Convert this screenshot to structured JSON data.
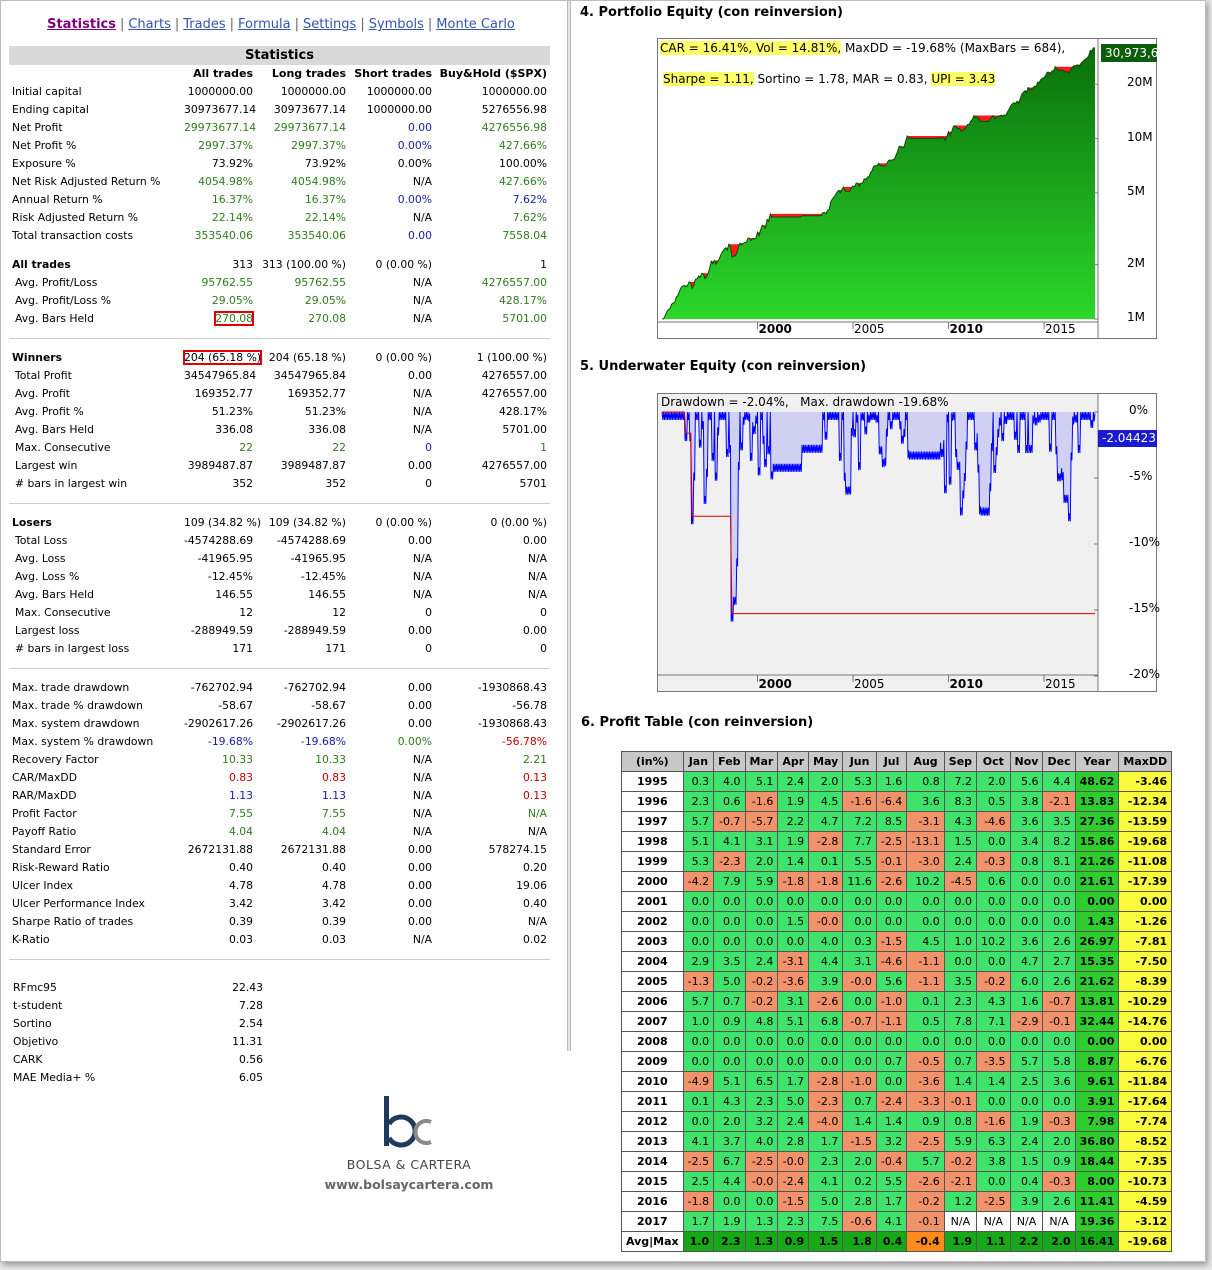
{
  "nav": {
    "items": [
      "Statistics",
      "Charts",
      "Trades",
      "Formula",
      "Settings",
      "Symbols",
      "Monte Carlo"
    ],
    "active": "Statistics"
  },
  "stats": {
    "title": "Statistics",
    "columns": [
      "",
      "All trades",
      "Long trades",
      "Short trades",
      "Buy&Hold ($SPX)"
    ],
    "rows": [
      {
        "label": "Initial capital",
        "v": [
          "1000000.00",
          "1000000.00",
          "1000000.00",
          "1000000.00"
        ],
        "c": [
          "k",
          "k",
          "k",
          "k"
        ]
      },
      {
        "label": "Ending capital",
        "v": [
          "30973677.14",
          "30973677.14",
          "1000000.00",
          "5276556.98"
        ],
        "c": [
          "k",
          "k",
          "k",
          "k"
        ]
      },
      {
        "label": "Net Profit",
        "v": [
          "29973677.14",
          "29973677.14",
          "0.00",
          "4276556.98"
        ],
        "c": [
          "g",
          "g",
          "b",
          "g"
        ]
      },
      {
        "label": "Net Profit %",
        "v": [
          "2997.37%",
          "2997.37%",
          "0.00%",
          "427.66%"
        ],
        "c": [
          "g",
          "g",
          "b",
          "g"
        ]
      },
      {
        "label": "Exposure %",
        "v": [
          "73.92%",
          "73.92%",
          "0.00%",
          "100.00%"
        ],
        "c": [
          "k",
          "k",
          "k",
          "k"
        ]
      },
      {
        "label": "Net Risk Adjusted Return %",
        "v": [
          "4054.98%",
          "4054.98%",
          "N/A",
          "427.66%"
        ],
        "c": [
          "g",
          "g",
          "k",
          "g"
        ]
      },
      {
        "label": "Annual Return %",
        "v": [
          "16.37%",
          "16.37%",
          "0.00%",
          "7.62%"
        ],
        "c": [
          "g",
          "g",
          "b",
          "b"
        ]
      },
      {
        "label": "Risk Adjusted Return %",
        "v": [
          "22.14%",
          "22.14%",
          "N/A",
          "7.62%"
        ],
        "c": [
          "g",
          "g",
          "k",
          "g"
        ]
      },
      {
        "label": "Total transaction costs",
        "v": [
          "353540.06",
          "353540.06",
          "0.00",
          "7558.04"
        ],
        "c": [
          "g",
          "g",
          "b",
          "g"
        ]
      },
      {
        "sep": "blank"
      },
      {
        "label": "All trades",
        "sec": true,
        "v": [
          "313",
          "313 (100.00 %)",
          "0 (0.00 %)",
          "1"
        ],
        "c": [
          "k",
          "k",
          "k",
          "k"
        ]
      },
      {
        "label": "Avg. Profit/Loss",
        "ind": true,
        "v": [
          "95762.55",
          "95762.55",
          "N/A",
          "4276557.00"
        ],
        "c": [
          "g",
          "g",
          "k",
          "g"
        ]
      },
      {
        "label": "Avg. Profit/Loss %",
        "ind": true,
        "v": [
          "29.05%",
          "29.05%",
          "N/A",
          "428.17%"
        ],
        "c": [
          "g",
          "g",
          "k",
          "g"
        ]
      },
      {
        "label": "Avg. Bars Held",
        "ind": true,
        "v": [
          "270.08",
          "270.08",
          "N/A",
          "5701.00"
        ],
        "c": [
          "g",
          "g",
          "k",
          "g"
        ],
        "box": 0
      },
      {
        "sep": "line"
      },
      {
        "label": "Winners",
        "sec": true,
        "v": [
          "204 (65.18 %)",
          "204 (65.18 %)",
          "0 (0.00 %)",
          "1 (100.00 %)"
        ],
        "c": [
          "k",
          "k",
          "k",
          "k"
        ],
        "box": 0
      },
      {
        "label": "Total Profit",
        "ind": true,
        "v": [
          "34547965.84",
          "34547965.84",
          "0.00",
          "4276557.00"
        ],
        "c": [
          "k",
          "k",
          "k",
          "k"
        ]
      },
      {
        "label": "Avg. Profit",
        "ind": true,
        "v": [
          "169352.77",
          "169352.77",
          "N/A",
          "4276557.00"
        ],
        "c": [
          "k",
          "k",
          "k",
          "k"
        ]
      },
      {
        "label": "Avg. Profit %",
        "ind": true,
        "v": [
          "51.23%",
          "51.23%",
          "N/A",
          "428.17%"
        ],
        "c": [
          "k",
          "k",
          "k",
          "k"
        ]
      },
      {
        "label": "Avg. Bars Held",
        "ind": true,
        "v": [
          "336.08",
          "336.08",
          "N/A",
          "5701.00"
        ],
        "c": [
          "k",
          "k",
          "k",
          "k"
        ]
      },
      {
        "label": "Max. Consecutive",
        "ind": true,
        "v": [
          "22",
          "22",
          "0",
          "1"
        ],
        "c": [
          "g",
          "g",
          "b",
          "g"
        ]
      },
      {
        "label": "Largest win",
        "ind": true,
        "v": [
          "3989487.87",
          "3989487.87",
          "0.00",
          "4276557.00"
        ],
        "c": [
          "k",
          "k",
          "k",
          "k"
        ]
      },
      {
        "label": "# bars in largest win",
        "ind": true,
        "v": [
          "352",
          "352",
          "0",
          "5701"
        ],
        "c": [
          "k",
          "k",
          "k",
          "k"
        ]
      },
      {
        "sep": "line"
      },
      {
        "label": "Losers",
        "sec": true,
        "v": [
          "109 (34.82 %)",
          "109 (34.82 %)",
          "0 (0.00 %)",
          "0 (0.00 %)"
        ],
        "c": [
          "k",
          "k",
          "k",
          "k"
        ]
      },
      {
        "label": "Total Loss",
        "ind": true,
        "v": [
          "-4574288.69",
          "-4574288.69",
          "0.00",
          "0.00"
        ],
        "c": [
          "k",
          "k",
          "k",
          "k"
        ]
      },
      {
        "label": "Avg. Loss",
        "ind": true,
        "v": [
          "-41965.95",
          "-41965.95",
          "N/A",
          "N/A"
        ],
        "c": [
          "k",
          "k",
          "k",
          "k"
        ]
      },
      {
        "label": "Avg. Loss %",
        "ind": true,
        "v": [
          "-12.45%",
          "-12.45%",
          "N/A",
          "N/A"
        ],
        "c": [
          "k",
          "k",
          "k",
          "k"
        ]
      },
      {
        "label": "Avg. Bars Held",
        "ind": true,
        "v": [
          "146.55",
          "146.55",
          "N/A",
          "N/A"
        ],
        "c": [
          "k",
          "k",
          "k",
          "k"
        ]
      },
      {
        "label": "Max. Consecutive",
        "ind": true,
        "v": [
          "12",
          "12",
          "0",
          "0"
        ],
        "c": [
          "k",
          "k",
          "k",
          "k"
        ]
      },
      {
        "label": "Largest loss",
        "ind": true,
        "v": [
          "-288949.59",
          "-288949.59",
          "0.00",
          "0.00"
        ],
        "c": [
          "k",
          "k",
          "k",
          "k"
        ]
      },
      {
        "label": "# bars in largest loss",
        "ind": true,
        "v": [
          "171",
          "171",
          "0",
          "0"
        ],
        "c": [
          "k",
          "k",
          "k",
          "k"
        ]
      },
      {
        "sep": "line"
      },
      {
        "label": "Max. trade drawdown",
        "v": [
          "-762702.94",
          "-762702.94",
          "0.00",
          "-1930868.43"
        ],
        "c": [
          "k",
          "k",
          "k",
          "k"
        ]
      },
      {
        "label": "Max. trade % drawdown",
        "v": [
          "-58.67",
          "-58.67",
          "0.00",
          "-56.78"
        ],
        "c": [
          "k",
          "k",
          "k",
          "k"
        ]
      },
      {
        "label": "Max. system drawdown",
        "v": [
          "-2902617.26",
          "-2902617.26",
          "0.00",
          "-1930868.43"
        ],
        "c": [
          "k",
          "k",
          "k",
          "k"
        ]
      },
      {
        "label": "Max. system % drawdown",
        "v": [
          "-19.68%",
          "-19.68%",
          "0.00%",
          "-56.78%"
        ],
        "c": [
          "b",
          "b",
          "g",
          "r"
        ]
      },
      {
        "label": "Recovery Factor",
        "v": [
          "10.33",
          "10.33",
          "N/A",
          "2.21"
        ],
        "c": [
          "g",
          "g",
          "k",
          "g"
        ]
      },
      {
        "label": "CAR/MaxDD",
        "v": [
          "0.83",
          "0.83",
          "N/A",
          "0.13"
        ],
        "c": [
          "r",
          "r",
          "k",
          "r"
        ]
      },
      {
        "label": "RAR/MaxDD",
        "v": [
          "1.13",
          "1.13",
          "N/A",
          "0.13"
        ],
        "c": [
          "b",
          "b",
          "k",
          "r"
        ]
      },
      {
        "label": "Profit Factor",
        "v": [
          "7.55",
          "7.55",
          "N/A",
          "N/A"
        ],
        "c": [
          "g",
          "g",
          "k",
          "g"
        ]
      },
      {
        "label": "Payoff Ratio",
        "v": [
          "4.04",
          "4.04",
          "N/A",
          "N/A"
        ],
        "c": [
          "g",
          "g",
          "k",
          "k"
        ]
      },
      {
        "label": "Standard Error",
        "v": [
          "2672131.88",
          "2672131.88",
          "0.00",
          "578274.15"
        ],
        "c": [
          "k",
          "k",
          "k",
          "k"
        ]
      },
      {
        "label": "Risk-Reward Ratio",
        "v": [
          "0.40",
          "0.40",
          "0.00",
          "0.20"
        ],
        "c": [
          "k",
          "k",
          "k",
          "k"
        ]
      },
      {
        "label": "Ulcer Index",
        "v": [
          "4.78",
          "4.78",
          "0.00",
          "19.06"
        ],
        "c": [
          "k",
          "k",
          "k",
          "k"
        ]
      },
      {
        "label": "Ulcer Performance Index",
        "v": [
          "3.42",
          "3.42",
          "0.00",
          "0.40"
        ],
        "c": [
          "k",
          "k",
          "k",
          "k"
        ]
      },
      {
        "label": "Sharpe Ratio of trades",
        "v": [
          "0.39",
          "0.39",
          "0.00",
          "N/A"
        ],
        "c": [
          "k",
          "k",
          "k",
          "k"
        ]
      },
      {
        "label": "K-Ratio",
        "v": [
          "0.03",
          "0.03",
          "N/A",
          "0.02"
        ],
        "c": [
          "k",
          "k",
          "k",
          "k"
        ]
      },
      {
        "sep": "line"
      }
    ]
  },
  "extra": [
    [
      "RFmc95",
      "22.43"
    ],
    [
      "t-student",
      "7.28"
    ],
    [
      "Sortino",
      "2.54"
    ],
    [
      "Objetivo",
      "11.31"
    ],
    [
      "CARK",
      "0.56"
    ],
    [
      "MAE Media+ %",
      "6.05"
    ]
  ],
  "logo": {
    "mark": "bc",
    "brand": "BOLSA & CARTERA",
    "site": "www.bolsaycartera.com"
  },
  "equity": {
    "heading": "4. Portfolio Equity (con reinversion)",
    "line1": {
      "car": "CAR = 16.41%, Vol = 14.81%,",
      "rest": " MaxDD = -19.68% (MaxBars = 684),"
    },
    "line2": {
      "sharpe": "Sharpe = 1.11,",
      "mid": " Sortino = 1.78, MAR = 0.83, ",
      "upi": "UPI = 3.43"
    },
    "last_value": "30,973,6",
    "y_labels": [
      "20M",
      "10M",
      "5M",
      "2M",
      "1M"
    ],
    "x_labels": [
      "2000",
      "2005",
      "2010",
      "2015"
    ]
  },
  "underwater": {
    "heading": "5. Underwater Equity (con reinversion)",
    "caption": "Drawdown = -2.04%,   Max. drawdown -19.68%",
    "last_value": "-2.04423",
    "y_labels": [
      "0%",
      "-5%",
      "-10%",
      "-15%",
      "-20%"
    ],
    "x_labels": [
      "2000",
      "2005",
      "2010",
      "2015"
    ]
  },
  "profit_table": {
    "heading": "6. Profit Table (con reinversion)",
    "header": [
      "(in%)",
      "Jan",
      "Feb",
      "Mar",
      "Apr",
      "May",
      "Jun",
      "Jul",
      "Aug",
      "Sep",
      "Oct",
      "Nov",
      "Dec",
      "Year",
      "MaxDD"
    ],
    "rows": [
      [
        "1995",
        "0.3",
        "4.0",
        "5.1",
        "2.4",
        "2.0",
        "5.3",
        "1.6",
        "0.8",
        "7.2",
        "2.0",
        "5.6",
        "4.4",
        "48.62",
        "-3.46"
      ],
      [
        "1996",
        "2.3",
        "0.6",
        "-1.6",
        "1.9",
        "4.5",
        "-1.6",
        "-6.4",
        "3.6",
        "8.3",
        "0.5",
        "3.8",
        "-2.1",
        "13.83",
        "-12.34"
      ],
      [
        "1997",
        "5.7",
        "-0.7",
        "-5.7",
        "2.2",
        "4.7",
        "7.2",
        "8.5",
        "-3.1",
        "4.3",
        "-4.6",
        "3.6",
        "3.5",
        "27.36",
        "-13.59"
      ],
      [
        "1998",
        "5.1",
        "4.1",
        "3.1",
        "1.9",
        "-2.8",
        "7.7",
        "-2.5",
        "-13.1",
        "1.5",
        "0.0",
        "3.4",
        "8.2",
        "15.86",
        "-19.68"
      ],
      [
        "1999",
        "5.3",
        "-2.3",
        "2.0",
        "1.4",
        "0.1",
        "5.5",
        "-0.1",
        "-3.0",
        "2.4",
        "-0.3",
        "0.8",
        "8.1",
        "21.26",
        "-11.08"
      ],
      [
        "2000",
        "-4.2",
        "7.9",
        "5.9",
        "-1.8",
        "-1.8",
        "11.6",
        "-2.6",
        "10.2",
        "-4.5",
        "0.6",
        "0.0",
        "0.0",
        "21.61",
        "-17.39"
      ],
      [
        "2001",
        "0.0",
        "0.0",
        "0.0",
        "0.0",
        "0.0",
        "0.0",
        "0.0",
        "0.0",
        "0.0",
        "0.0",
        "0.0",
        "0.0",
        "0.00",
        "0.00"
      ],
      [
        "2002",
        "0.0",
        "0.0",
        "0.0",
        "1.5",
        "-0.0",
        "0.0",
        "0.0",
        "0.0",
        "0.0",
        "0.0",
        "0.0",
        "0.0",
        "1.43",
        "-1.26"
      ],
      [
        "2003",
        "0.0",
        "0.0",
        "0.0",
        "0.0",
        "4.0",
        "0.3",
        "-1.5",
        "4.5",
        "1.0",
        "10.2",
        "3.6",
        "2.6",
        "26.97",
        "-7.81"
      ],
      [
        "2004",
        "2.9",
        "3.5",
        "2.4",
        "-3.1",
        "4.4",
        "3.1",
        "-4.6",
        "-1.1",
        "0.0",
        "0.0",
        "4.7",
        "2.7",
        "15.35",
        "-7.50"
      ],
      [
        "2005",
        "-1.3",
        "5.0",
        "-0.2",
        "-3.6",
        "3.9",
        "-0.0",
        "5.6",
        "-1.1",
        "3.5",
        "-0.2",
        "6.0",
        "2.6",
        "21.62",
        "-8.39"
      ],
      [
        "2006",
        "5.7",
        "0.7",
        "-0.2",
        "3.1",
        "-2.6",
        "0.0",
        "-1.0",
        "0.1",
        "2.3",
        "4.3",
        "1.6",
        "-0.7",
        "13.81",
        "-10.29"
      ],
      [
        "2007",
        "1.0",
        "0.9",
        "4.8",
        "5.1",
        "6.8",
        "-0.7",
        "-1.1",
        "0.5",
        "7.8",
        "7.1",
        "-2.9",
        "-0.1",
        "32.44",
        "-14.76"
      ],
      [
        "2008",
        "0.0",
        "0.0",
        "0.0",
        "0.0",
        "0.0",
        "0.0",
        "0.0",
        "0.0",
        "0.0",
        "0.0",
        "0.0",
        "0.0",
        "0.00",
        "0.00"
      ],
      [
        "2009",
        "0.0",
        "0.0",
        "0.0",
        "0.0",
        "0.0",
        "0.0",
        "0.7",
        "-0.5",
        "0.7",
        "-3.5",
        "5.7",
        "5.8",
        "8.87",
        "-6.76"
      ],
      [
        "2010",
        "-4.9",
        "5.1",
        "6.5",
        "1.7",
        "-2.8",
        "-1.0",
        "0.0",
        "-3.6",
        "1.4",
        "1.4",
        "2.5",
        "3.6",
        "9.61",
        "-11.84"
      ],
      [
        "2011",
        "0.1",
        "4.3",
        "2.3",
        "5.0",
        "-2.3",
        "0.7",
        "-2.4",
        "-3.3",
        "-0.1",
        "0.0",
        "0.0",
        "0.0",
        "3.91",
        "-17.64"
      ],
      [
        "2012",
        "0.0",
        "2.0",
        "3.2",
        "2.4",
        "-4.0",
        "1.4",
        "1.4",
        "0.9",
        "0.8",
        "-1.6",
        "1.9",
        "-0.3",
        "7.98",
        "-7.74"
      ],
      [
        "2013",
        "4.1",
        "3.7",
        "4.0",
        "2.8",
        "1.7",
        "-1.5",
        "3.2",
        "-2.5",
        "5.9",
        "6.3",
        "2.4",
        "2.0",
        "36.80",
        "-8.52"
      ],
      [
        "2014",
        "-2.5",
        "6.7",
        "-2.5",
        "-0.0",
        "2.3",
        "2.0",
        "-0.4",
        "5.7",
        "-0.2",
        "3.8",
        "1.5",
        "0.9",
        "18.44",
        "-7.35"
      ],
      [
        "2015",
        "2.5",
        "4.4",
        "-0.0",
        "-2.4",
        "4.1",
        "0.2",
        "5.5",
        "-2.6",
        "-2.1",
        "0.0",
        "0.4",
        "-0.3",
        "8.00",
        "-10.73"
      ],
      [
        "2016",
        "-1.8",
        "0.0",
        "0.0",
        "-1.5",
        "5.0",
        "2.8",
        "1.7",
        "-0.2",
        "1.2",
        "-2.5",
        "3.9",
        "2.6",
        "11.41",
        "-4.59"
      ],
      [
        "2017",
        "1.7",
        "1.9",
        "1.3",
        "2.3",
        "7.5",
        "-0.6",
        "4.1",
        "-0.1",
        "N/A",
        "N/A",
        "N/A",
        "N/A",
        "19.36",
        "-3.12"
      ]
    ],
    "avg_row": [
      "Avg|Max",
      "1.0",
      "2.3",
      "1.3",
      "0.9",
      "1.5",
      "1.8",
      "0.4",
      "-0.4",
      "1.9",
      "1.1",
      "2.2",
      "2.0",
      "16.41",
      "-19.68"
    ]
  },
  "colors": {
    "positive": "#3fe26a",
    "negative": "#f2926a",
    "year": "#2dcd2d",
    "maxdd": "#fafa3c",
    "highlight": "#ffff66",
    "equity_green": "#0d8a0d",
    "drawdown_red": "#ff0000",
    "uw_blue": "#0000ff"
  }
}
